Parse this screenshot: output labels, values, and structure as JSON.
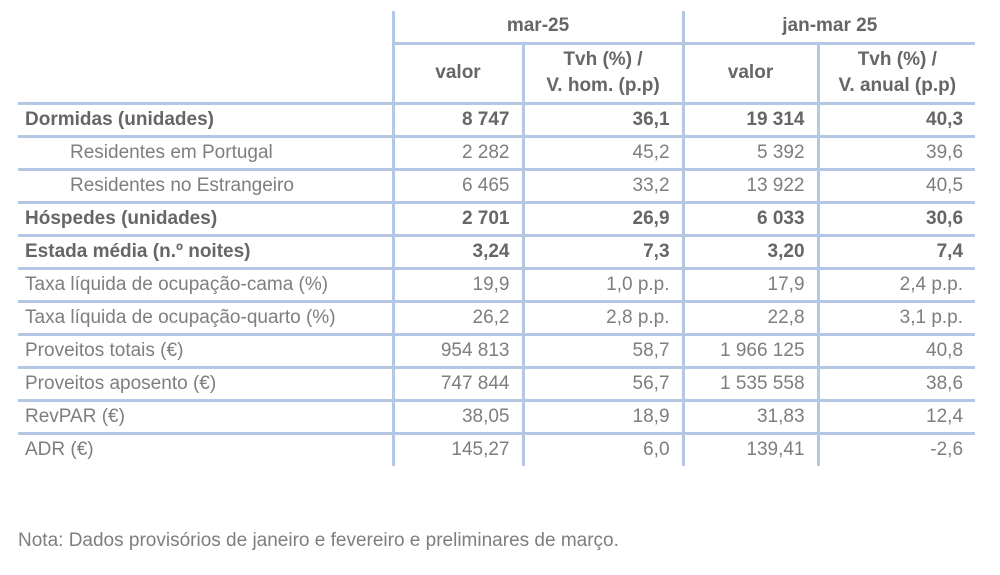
{
  "palette": {
    "border_blue": "#b4c7e7",
    "bold_text_gray": "#666666",
    "regular_text_gray": "#7e7e7e"
  },
  "table": {
    "column_groups": [
      {
        "label": "mar-25",
        "columns": [
          "valor",
          "Tvh (%) /\nV. hom. (p.p)"
        ]
      },
      {
        "label": "jan-mar 25",
        "columns": [
          "valor",
          "Tvh (%) /\nV. anual (p.p)"
        ]
      }
    ],
    "rows": [
      {
        "label": "Dormidas (unidades)",
        "bold": true,
        "indent": false,
        "values": [
          "8 747",
          "36,1",
          "19 314",
          "40,3"
        ]
      },
      {
        "label": "Residentes em Portugal",
        "bold": false,
        "indent": true,
        "values": [
          "2 282",
          "45,2",
          "5 392",
          "39,6"
        ]
      },
      {
        "label": "Residentes no Estrangeiro",
        "bold": false,
        "indent": true,
        "values": [
          "6 465",
          "33,2",
          "13 922",
          "40,5"
        ]
      },
      {
        "label": "Hóspedes (unidades)",
        "bold": true,
        "indent": false,
        "values": [
          "2 701",
          "26,9",
          "6 033",
          "30,6"
        ]
      },
      {
        "label": "Estada média (n.º noites)",
        "bold": true,
        "indent": false,
        "values": [
          "3,24",
          "7,3",
          "3,20",
          "7,4"
        ]
      },
      {
        "label": "Taxa líquida de ocupação-cama (%)",
        "bold": false,
        "indent": false,
        "values": [
          "19,9",
          "1,0 p.p.",
          "17,9",
          "2,4 p.p."
        ]
      },
      {
        "label": "Taxa líquida de ocupação-quarto (%)",
        "bold": false,
        "indent": false,
        "values": [
          "26,2",
          "2,8 p.p.",
          "22,8",
          "3,1 p.p."
        ]
      },
      {
        "label": "Proveitos totais (€)",
        "bold": false,
        "indent": false,
        "values": [
          "954 813",
          "58,7",
          "1 966 125",
          "40,8"
        ]
      },
      {
        "label": "Proveitos aposento (€)",
        "bold": false,
        "indent": false,
        "values": [
          "747 844",
          "56,7",
          "1 535 558",
          "38,6"
        ]
      },
      {
        "label": "RevPAR (€)",
        "bold": false,
        "indent": false,
        "values": [
          "38,05",
          "18,9",
          "31,83",
          "12,4"
        ]
      },
      {
        "label": "ADR (€)",
        "bold": false,
        "indent": false,
        "values": [
          "145,27",
          "6,0",
          "139,41",
          "-2,6"
        ]
      }
    ]
  },
  "note": "Nota: Dados provisórios de janeiro e fevereiro e preliminares de março."
}
